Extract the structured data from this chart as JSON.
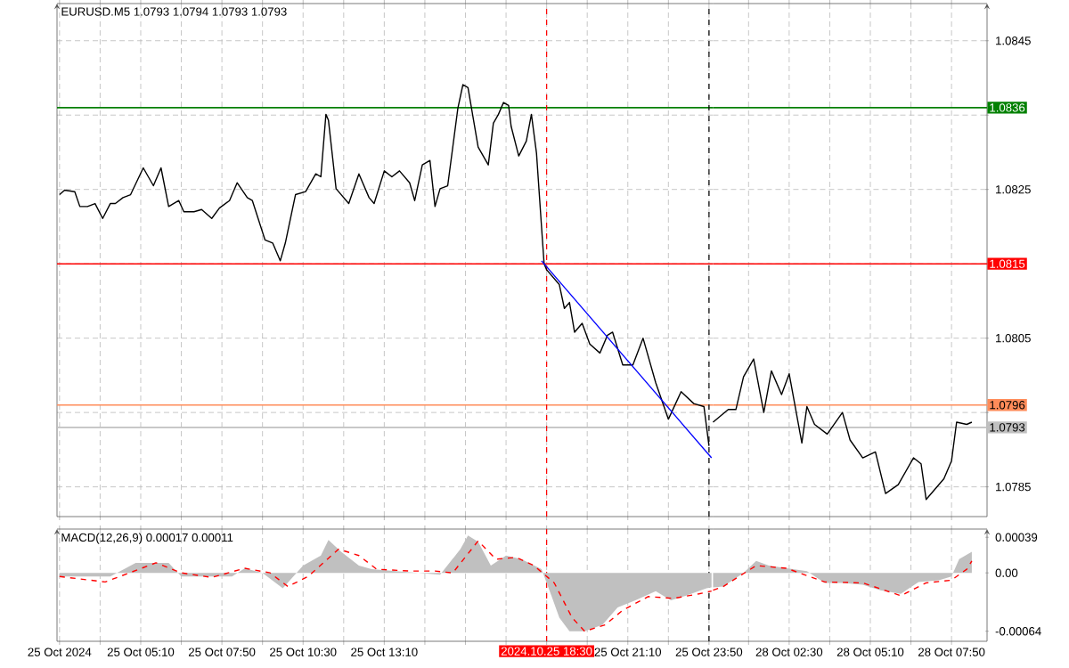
{
  "chart_data": [
    {
      "type": "line",
      "title": "EURUSD.M5 1.0793 1.0794 1.0793 1.0793",
      "xlim": [
        "2024-10-25T02:25",
        "2024-10-25T23:58"
      ],
      "ylim": [
        1.0781,
        1.085
      ],
      "xticks": [
        "2024-10-25T02:30",
        "2024-10-25T03:50",
        "2024-10-25T05:10",
        "2024-10-25T06:30",
        "2024-10-25T07:50",
        "2024-10-25T09:10",
        "2024-10-25T10:30",
        "2024-10-25T11:50",
        "2024-10-25T13:10",
        "2024-10-25T14:30",
        "2024-10-25T15:50",
        "2024-10-25T17:10",
        "2024-10-25T18:30",
        "2024-10-25T19:50",
        "2024-10-25T21:10",
        "2024-10-25T22:30",
        "2024-10-25T23:50"
      ],
      "yticks": [
        1.0845,
        1.0835,
        1.0825,
        1.0815,
        1.0805,
        1.0795,
        1.0785
      ],
      "tick_labels": false,
      "grid": true,
      "series": [
        {
          "color": "#000000",
          "x": [
            "2024-10-25T02:30",
            "2024-10-25T02:40",
            "2024-10-25T03:00",
            "2024-10-25T03:10",
            "2024-10-25T03:25",
            "2024-10-25T03:40",
            "2024-10-25T03:55",
            "2024-10-25T04:10",
            "2024-10-25T04:20",
            "2024-10-25T04:35",
            "2024-10-25T04:50",
            "2024-10-25T05:15",
            "2024-10-25T05:25",
            "2024-10-25T05:35",
            "2024-10-25T05:50",
            "2024-10-25T06:05",
            "2024-10-25T06:25",
            "2024-10-25T06:35",
            "2024-10-25T06:55",
            "2024-10-25T07:10",
            "2024-10-25T07:30",
            "2024-10-25T07:45",
            "2024-10-25T08:05",
            "2024-10-25T08:20",
            "2024-10-25T08:40",
            "2024-10-25T08:50",
            "2024-10-25T09:15",
            "2024-10-25T09:30",
            "2024-10-25T09:45",
            "2024-10-25T09:55",
            "2024-10-25T10:15",
            "2024-10-25T10:35",
            "2024-10-25T10:55",
            "2024-10-25T11:05",
            "2024-10-25T11:15",
            "2024-10-25T11:20",
            "2024-10-25T11:35",
            "2024-10-25T12:00",
            "2024-10-25T12:20",
            "2024-10-25T12:40",
            "2024-10-25T12:50",
            "2024-10-25T13:10",
            "2024-10-25T13:25",
            "2024-10-25T13:40",
            "2024-10-25T14:00",
            "2024-10-25T14:10",
            "2024-10-25T14:25",
            "2024-10-25T14:40",
            "2024-10-25T14:50",
            "2024-10-25T15:00",
            "2024-10-25T15:15",
            "2024-10-25T15:35",
            "2024-10-25T15:45",
            "2024-10-25T15:55",
            "2024-10-25T16:15",
            "2024-10-25T16:35",
            "2024-10-25T16:45",
            "2024-10-25T16:55",
            "2024-10-25T17:05",
            "2024-10-25T17:15",
            "2024-10-25T17:20",
            "2024-10-25T17:35",
            "2024-10-25T17:50",
            "2024-10-25T18:00",
            "2024-10-25T18:10",
            "2024-10-25T18:20",
            "2024-10-25T18:25",
            "2024-10-25T18:30",
            "2024-10-25T18:55",
            "2024-10-25T19:05",
            "2024-10-25T19:15",
            "2024-10-25T19:25",
            "2024-10-25T19:40",
            "2024-10-25T19:55",
            "2024-10-25T20:15",
            "2024-10-25T20:30",
            "2024-10-25T20:40",
            "2024-10-25T21:00",
            "2024-10-25T21:20",
            "2024-10-25T21:40",
            "2024-10-25T22:05",
            "2024-10-25T22:30",
            "2024-10-25T22:55",
            "2024-10-25T23:20",
            "2024-10-25T23:40",
            "2024-10-25T23:50"
          ],
          "values": [
            1.08243,
            1.08249,
            1.08247,
            1.08227,
            1.08227,
            1.08231,
            1.08211,
            1.08231,
            1.08231,
            1.08239,
            1.08243,
            1.08279,
            1.08267,
            1.08255,
            1.08279,
            1.08227,
            1.08235,
            1.0822,
            1.0822,
            1.08223,
            1.08211,
            1.08225,
            1.08235,
            1.08259,
            1.08239,
            1.08235,
            1.08182,
            1.08178,
            1.08154,
            1.08178,
            1.08243,
            1.08247,
            1.08271,
            1.08267,
            1.08351,
            1.08343,
            1.08251,
            1.08231,
            1.08271,
            1.08239,
            1.08231,
            1.08275,
            1.08267,
            1.08275,
            1.08259,
            1.08235,
            1.08283,
            1.08289,
            1.08227,
            1.08251,
            1.08255,
            1.08359,
            1.08391,
            1.08387,
            1.08307,
            1.08283,
            1.08339,
            1.08351,
            1.08367,
            1.08363,
            1.08335,
            1.08295,
            1.08315,
            1.08351,
            1.08299,
            1.08199,
            1.0815,
            1.08142,
            1.08122,
            1.0809,
            1.08098,
            1.08058,
            1.0807,
            1.08042,
            1.0803,
            1.08054,
            1.08058,
            1.08014,
            1.08014,
            1.0805,
            1.0799,
            1.07941,
            1.07978,
            1.07962,
            1.07958,
            1.07905
          ]
        },
        {
          "color": "#0000ff",
          "x": [
            "2024-10-25T18:20",
            "2024-10-25T23:55"
          ],
          "values": [
            1.08154,
            1.07889
          ]
        }
      ],
      "ref_lines": [
        {
          "axis": "y",
          "value": 1.0836,
          "color": "#008000"
        },
        {
          "axis": "y",
          "value": 1.0815,
          "color": "#ff0000"
        },
        {
          "axis": "y",
          "value": 1.0796,
          "color": "#ff8c5a"
        },
        {
          "axis": "y",
          "value": 1.0793,
          "color": "#c0c0c0"
        },
        {
          "axis": "x",
          "value": "2024-10-25T18:30",
          "color": "#ff0000",
          "line_style": "dashed"
        },
        {
          "axis": "x",
          "value": "2024-10-25T23:50",
          "color": "#000000",
          "line_style": "dashed"
        }
      ]
    },
    {
      "type": "line",
      "xlim": [
        "2024-10-28T00:00",
        "2024-10-28T09:00"
      ],
      "ylim": [
        1.0781,
        1.085
      ],
      "xticks": [
        "2024-10-28T01:10",
        "2024-10-28T02:30",
        "2024-10-28T03:50",
        "2024-10-28T05:10",
        "2024-10-28T06:30",
        "2024-10-28T07:50"
      ],
      "yticks": [
        1.0845,
        {
          "value": 1.0835,
          "label": null
        },
        1.0825,
        {
          "value": 1.0815,
          "label": null
        },
        1.0805,
        {
          "value": 1.0795,
          "label": null
        },
        1.0785
      ],
      "tick_labels": "y",
      "grid": true,
      "series": [
        {
          "color": "#000000",
          "x": [
            "2024-10-28T00:00",
            "2024-10-28T00:30",
            "2024-10-28T00:45",
            "2024-10-28T01:00",
            "2024-10-28T01:20",
            "2024-10-28T01:40",
            "2024-10-28T01:55",
            "2024-10-28T02:15",
            "2024-10-28T02:30",
            "2024-10-28T02:55",
            "2024-10-28T03:05",
            "2024-10-28T03:20",
            "2024-10-28T03:45",
            "2024-10-28T04:15",
            "2024-10-28T04:30",
            "2024-10-28T04:55",
            "2024-10-28T05:20",
            "2024-10-28T05:40",
            "2024-10-28T06:05",
            "2024-10-28T06:35",
            "2024-10-28T06:50",
            "2024-10-28T07:00",
            "2024-10-28T07:20",
            "2024-10-28T07:35",
            "2024-10-28T07:50",
            "2024-10-28T08:00",
            "2024-10-28T08:20",
            "2024-10-28T08:30"
          ],
          "values": [
            1.07937,
            1.07954,
            1.07954,
            1.07998,
            1.08022,
            1.0795,
            1.08006,
            1.07974,
            1.08002,
            1.07909,
            1.07958,
            1.07934,
            1.07921,
            1.0795,
            1.07913,
            1.07889,
            1.07897,
            1.07841,
            1.07853,
            1.07889,
            1.07881,
            1.07833,
            1.07849,
            1.07861,
            1.07885,
            1.07937,
            1.07934,
            1.07937
          ]
        }
      ],
      "ref_lines": [
        {
          "axis": "y",
          "value": 1.0836,
          "label": "1.0836",
          "color": "#008000"
        },
        {
          "axis": "y",
          "value": 1.0815,
          "label": "1.0815",
          "color": "#ff0000"
        },
        {
          "axis": "y",
          "value": 1.0796,
          "label": "1.0796",
          "color": "#ff8c5a"
        },
        {
          "axis": "y",
          "value": 1.0793,
          "label": "1.0793",
          "color": "#c0c0c0"
        }
      ]
    },
    {
      "type": "line",
      "title": "MACD(12,26,9) 0.00017 0.00011",
      "xlim": [
        "2024-10-25T02:25",
        "2024-10-25T23:58"
      ],
      "ylim": [
        -0.00075,
        0.00048
      ],
      "xticks": [
        {
          "value": "2024-10-25T02:30",
          "label": "25 Oct 2024"
        },
        {
          "value": "2024-10-25T03:50",
          "label": null
        },
        {
          "value": "2024-10-25T05:10",
          "label": "25 Oct 05:10"
        },
        {
          "value": "2024-10-25T06:30",
          "label": null
        },
        {
          "value": "2024-10-25T07:50",
          "label": "25 Oct 07:50"
        },
        {
          "value": "2024-10-25T09:10",
          "label": null
        },
        {
          "value": "2024-10-25T10:30",
          "label": "25 Oct 10:30"
        },
        {
          "value": "2024-10-25T11:50",
          "label": null
        },
        {
          "value": "2024-10-25T13:10",
          "label": "25 Oct 13:10"
        },
        {
          "value": "2024-10-25T14:30",
          "label": null
        },
        {
          "value": "2024-10-25T15:50",
          "label": null
        },
        {
          "value": "2024-10-25T17:10",
          "label": null
        },
        {
          "value": "2024-10-25T18:30",
          "label": null
        },
        {
          "value": "2024-10-25T19:50",
          "label": null
        },
        {
          "value": "2024-10-25T21:10",
          "label": "25 Oct 21:10"
        },
        {
          "value": "2024-10-25T22:30",
          "label": null
        },
        {
          "value": "2024-10-25T23:50",
          "label": "25 Oct 23:50"
        }
      ],
      "yticks": [
        0.00039,
        0,
        -0.00064
      ],
      "tick_labels": "x",
      "grid": "x",
      "series": [
        {
          "type": "area",
          "color": "#c0c0c0",
          "x": [
            "2024-10-25T02:30",
            "2024-10-25T04:10",
            "2024-10-25T05:00",
            "2024-10-25T06:05",
            "2024-10-25T06:30",
            "2024-10-25T08:10",
            "2024-10-25T08:35",
            "2024-10-25T09:10",
            "2024-10-25T09:50",
            "2024-10-25T10:30",
            "2024-10-25T11:05",
            "2024-10-25T11:20",
            "2024-10-25T11:45",
            "2024-10-25T12:20",
            "2024-10-25T12:45",
            "2024-10-25T15:00",
            "2024-10-25T15:40",
            "2024-10-25T15:55",
            "2024-10-25T16:15",
            "2024-10-25T16:40",
            "2024-10-25T17:10",
            "2024-10-25T17:40",
            "2024-10-25T18:20",
            "2024-10-25T18:40",
            "2024-10-25T18:55",
            "2024-10-25T19:15",
            "2024-10-25T19:45",
            "2024-10-25T20:20",
            "2024-10-25T20:50",
            "2024-10-25T21:25",
            "2024-10-25T22:05",
            "2024-10-25T22:35",
            "2024-10-25T23:05",
            "2024-10-25T23:45",
            "2024-10-25T23:55"
          ],
          "values": [
            -4e-05,
            -4e-05,
            0.00011,
            0.00011,
            -4e-05,
            -4e-05,
            5e-05,
            0,
            -0.00017,
            8e-05,
            0.00019,
            0.00036,
            0.00023,
            8e-05,
            4e-05,
            -2e-05,
            0.00026,
            0.00041,
            0.00034,
            8e-05,
            0.00019,
            0.00015,
            4e-05,
            -0.00026,
            -0.00049,
            -0.00064,
            -0.00064,
            -0.00057,
            -0.00038,
            -0.0003,
            -0.0002,
            -0.0003,
            -0.00025,
            -0.00017,
            -0.00016
          ]
        },
        {
          "type": "line",
          "line_style": "dashed",
          "color": "#ff0000",
          "x": [
            "2024-10-25T02:30",
            "2024-10-25T04:00",
            "2024-10-25T05:40",
            "2024-10-25T06:30",
            "2024-10-25T07:30",
            "2024-10-25T08:35",
            "2024-10-25T09:25",
            "2024-10-25T10:00",
            "2024-10-25T10:40",
            "2024-10-25T11:40",
            "2024-10-25T12:20",
            "2024-10-25T12:55",
            "2024-10-25T14:00",
            "2024-10-25T14:50",
            "2024-10-25T15:25",
            "2024-10-25T16:15",
            "2024-10-25T16:50",
            "2024-10-25T17:30",
            "2024-10-25T18:05",
            "2024-10-25T18:45",
            "2024-10-25T19:20",
            "2024-10-25T19:45",
            "2024-10-25T20:25",
            "2024-10-25T21:00",
            "2024-10-25T21:50",
            "2024-10-25T22:40",
            "2024-10-25T23:30",
            "2024-10-25T23:55"
          ],
          "values": [
            -4e-05,
            -0.0001,
            0.00011,
            0,
            -5e-05,
            5e-05,
            0,
            -0.00015,
            -4e-05,
            0.00026,
            0.00019,
            4e-05,
            2e-05,
            2e-05,
            0,
            0.00035,
            0.00015,
            0.00017,
            8e-05,
            -0.00011,
            -0.00049,
            -0.00064,
            -0.00057,
            -0.00041,
            -0.00026,
            -0.00028,
            -0.00023,
            -0.0002
          ]
        }
      ],
      "ref_lines": [
        {
          "axis": "x",
          "value": "2024-10-25T18:30",
          "label": "2024.10.25 18:30",
          "color": "#ff0000",
          "line_style": "dashed"
        },
        {
          "axis": "x",
          "value": "2024-10-25T23:50",
          "color": "#000000",
          "line_style": "dashed"
        }
      ]
    },
    {
      "type": "line",
      "xlim": [
        "2024-10-28T00:00",
        "2024-10-28T09:00"
      ],
      "ylim": [
        -0.00075,
        0.00048
      ],
      "xticks": [
        {
          "value": "2024-10-28T01:10",
          "label": null
        },
        {
          "value": "2024-10-28T02:30",
          "label": "28 Oct 02:30"
        },
        {
          "value": "2024-10-28T03:50",
          "label": null
        },
        {
          "value": "2024-10-28T05:10",
          "label": "28 Oct 05:10"
        },
        {
          "value": "2024-10-28T06:30",
          "label": null
        },
        {
          "value": "2024-10-28T07:50",
          "label": "28 Oct 07:50"
        }
      ],
      "yticks": [
        0.00039,
        {
          "value": 0,
          "label": "0.00"
        },
        -0.00064
      ],
      "grid": "x",
      "series": [
        {
          "type": "area",
          "color": "#c0c0c0",
          "x": [
            "2024-10-28T00:00",
            "2024-10-28T00:20",
            "2024-10-28T01:00",
            "2024-10-28T01:25",
            "2024-10-28T01:50",
            "2024-10-28T02:25",
            "2024-10-28T03:05",
            "2024-10-28T03:40",
            "2024-10-28T04:15",
            "2024-10-28T04:55",
            "2024-10-28T05:30",
            "2024-10-28T06:10",
            "2024-10-28T06:45",
            "2024-10-28T07:25",
            "2024-10-28T07:50",
            "2024-10-28T08:05",
            "2024-10-28T08:30"
          ],
          "values": [
            -0.00016,
            -0.00015,
            0,
            0.00013,
            8e-05,
            5e-05,
            2e-05,
            -0.00011,
            -0.00011,
            -0.00013,
            -0.00019,
            -0.00023,
            -0.0001,
            -8e-05,
            -4e-05,
            0.00015,
            0.00023
          ]
        },
        {
          "type": "line",
          "line_style": "dashed",
          "color": "#ff0000",
          "x": [
            "2024-10-28T00:00",
            "2024-10-28T00:20",
            "2024-10-28T01:25",
            "2024-10-28T02:25",
            "2024-10-28T03:40",
            "2024-10-28T04:55",
            "2024-10-28T06:10",
            "2024-10-28T07:00",
            "2024-10-28T07:50",
            "2024-10-28T08:20",
            "2024-10-28T08:30"
          ],
          "values": [
            -0.00019,
            -0.00015,
            8e-05,
            5e-05,
            -0.0001,
            -0.00011,
            -0.00025,
            -0.00011,
            -8e-05,
            4e-05,
            0.00013
          ]
        }
      ]
    }
  ]
}
